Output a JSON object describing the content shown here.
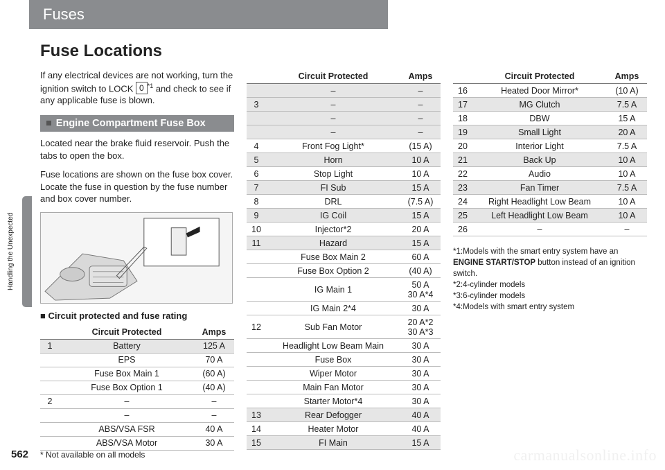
{
  "header": {
    "chapter": "Fuses"
  },
  "side": {
    "label": "Handling the Unexpected"
  },
  "page": {
    "num": "562",
    "footnote": "* Not available on all models"
  },
  "watermark": "carmanualsonline.info",
  "main": {
    "h1": "Fuse Locations",
    "intro_a": "If any electrical devices are not working, turn the ignition switch to LOCK ",
    "intro_key": "0",
    "intro_sup": "*1",
    "intro_b": " and check to see if any applicable fuse is blown.",
    "section1": "Engine Compartment Fuse Box",
    "body1": "Located near the brake fluid reservoir. Push the tabs to open the box.",
    "body2": "Fuse locations are shown on the fuse box cover. Locate the fuse in question by the fuse number and box cover number.",
    "subhead": "■ Circuit protected and fuse rating",
    "th_num": "",
    "th_circuit": "Circuit Protected",
    "th_amps": "Amps"
  },
  "table1": [
    {
      "n": "1",
      "c": "Battery",
      "a": "125 A",
      "shade": true
    },
    {
      "n": "",
      "c": "EPS",
      "a": "70 A",
      "shade": false
    },
    {
      "n": "",
      "c": "Fuse Box Main 1",
      "a": "(60 A)",
      "shade": false
    },
    {
      "n": "",
      "c": "Fuse Box Option 1",
      "a": "(40 A)",
      "shade": false
    },
    {
      "n": "2",
      "c": "–",
      "a": "–",
      "shade": false
    },
    {
      "n": "",
      "c": "–",
      "a": "–",
      "shade": false
    },
    {
      "n": "",
      "c": "ABS/VSA FSR",
      "a": "40 A",
      "shade": false
    },
    {
      "n": "",
      "c": "ABS/VSA Motor",
      "a": "30 A",
      "shade": false
    }
  ],
  "table2": [
    {
      "n": "",
      "c": "–",
      "a": "–",
      "shade": true
    },
    {
      "n": "3",
      "c": "–",
      "a": "–",
      "shade": true
    },
    {
      "n": "",
      "c": "–",
      "a": "–",
      "shade": true
    },
    {
      "n": "",
      "c": "–",
      "a": "–",
      "shade": true
    },
    {
      "n": "4",
      "c": "Front Fog Light*",
      "a": "(15 A)",
      "shade": false
    },
    {
      "n": "5",
      "c": "Horn",
      "a": "10 A",
      "shade": true
    },
    {
      "n": "6",
      "c": "Stop Light",
      "a": "10 A",
      "shade": false
    },
    {
      "n": "7",
      "c": "FI Sub",
      "a": "15 A",
      "shade": true
    },
    {
      "n": "8",
      "c": "DRL",
      "a": "(7.5 A)",
      "shade": false
    },
    {
      "n": "9",
      "c": "IG Coil",
      "a": "15 A",
      "shade": true
    },
    {
      "n": "10",
      "c": "Injector*2",
      "a": "20 A",
      "shade": false
    },
    {
      "n": "11",
      "c": "Hazard",
      "a": "15 A",
      "shade": true
    },
    {
      "n": "",
      "c": "Fuse Box Main 2",
      "a": "60 A",
      "shade": false
    },
    {
      "n": "",
      "c": "Fuse Box Option 2",
      "a": "(40 A)",
      "shade": false
    },
    {
      "n": "",
      "c": "IG Main 1",
      "a": "50 A\n30 A*4",
      "shade": false
    },
    {
      "n": "",
      "c": "IG Main 2*4",
      "a": "30 A",
      "shade": false
    },
    {
      "n": "12",
      "c": "Sub Fan Motor",
      "a": "20 A*2\n30 A*3",
      "shade": false
    },
    {
      "n": "",
      "c": "Headlight Low Beam Main",
      "a": "30 A",
      "shade": false
    },
    {
      "n": "",
      "c": "Fuse Box",
      "a": "30 A",
      "shade": false
    },
    {
      "n": "",
      "c": "Wiper Motor",
      "a": "30 A",
      "shade": false
    },
    {
      "n": "",
      "c": "Main Fan Motor",
      "a": "30 A",
      "shade": false
    },
    {
      "n": "",
      "c": "Starter Motor*4",
      "a": "30 A",
      "shade": false
    },
    {
      "n": "13",
      "c": "Rear Defogger",
      "a": "40 A",
      "shade": true
    },
    {
      "n": "14",
      "c": "Heater Motor",
      "a": "40 A",
      "shade": false
    },
    {
      "n": "15",
      "c": "FI Main",
      "a": "15 A",
      "shade": true
    }
  ],
  "table3": [
    {
      "n": "16",
      "c": "Heated Door Mirror*",
      "a": "(10 A)",
      "shade": false
    },
    {
      "n": "17",
      "c": "MG Clutch",
      "a": "7.5 A",
      "shade": true
    },
    {
      "n": "18",
      "c": "DBW",
      "a": "15 A",
      "shade": false
    },
    {
      "n": "19",
      "c": "Small Light",
      "a": "20 A",
      "shade": true
    },
    {
      "n": "20",
      "c": "Interior Light",
      "a": "7.5 A",
      "shade": false
    },
    {
      "n": "21",
      "c": "Back Up",
      "a": "10 A",
      "shade": true
    },
    {
      "n": "22",
      "c": "Audio",
      "a": "10 A",
      "shade": false
    },
    {
      "n": "23",
      "c": "Fan Timer",
      "a": "7.5 A",
      "shade": true
    },
    {
      "n": "24",
      "c": "Right Headlight Low Beam",
      "a": "10 A",
      "shade": false
    },
    {
      "n": "25",
      "c": "Left Headlight Low Beam",
      "a": "10 A",
      "shade": true
    },
    {
      "n": "26",
      "c": "–",
      "a": "–",
      "shade": false
    }
  ],
  "notes": {
    "n1a": "*1:Models with the smart entry system have an ",
    "n1b": "ENGINE START/STOP",
    "n1c": " button instead of an ignition switch.",
    "n2": "*2:4-cylinder models",
    "n3": "*3:6-cylinder models",
    "n4": "*4:Models with smart entry system"
  }
}
